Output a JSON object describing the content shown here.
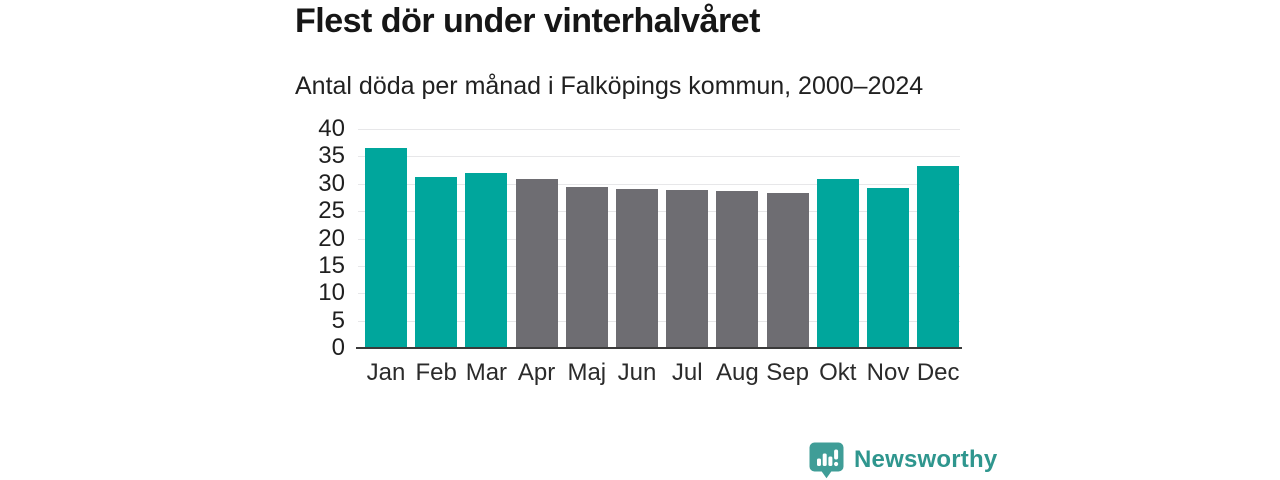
{
  "header": {
    "title": "Flest dör under vinterhalvåret",
    "subtitle": "Antal döda per månad i Falköpings kommun, 2000–2024"
  },
  "chart_data": {
    "type": "bar",
    "title": "Flest dör under vinterhalvåret",
    "subtitle": "Antal döda per månad i Falköpings kommun, 2000–2024",
    "categories": [
      "Jan",
      "Feb",
      "Mar",
      "Apr",
      "Maj",
      "Jun",
      "Jul",
      "Aug",
      "Sep",
      "Okt",
      "Nov",
      "Dec"
    ],
    "values": [
      36.6,
      31.2,
      32.0,
      30.9,
      29.4,
      29.0,
      28.9,
      28.7,
      28.3,
      30.8,
      29.3,
      33.2
    ],
    "bar_colors": [
      "teal",
      "teal",
      "teal",
      "gray",
      "gray",
      "gray",
      "gray",
      "gray",
      "gray",
      "teal",
      "teal",
      "teal"
    ],
    "colors": {
      "teal": "#00a69c",
      "gray": "#6e6d72"
    },
    "xlabel": "",
    "ylabel": "",
    "ylim": [
      0,
      40
    ],
    "ytick_step": 5,
    "grid": true,
    "legend": "none"
  },
  "footer": {
    "brand": "Newsworthy",
    "brand_color": "#2f968e",
    "icon_color": "#3f9d97",
    "logo_icon": "bar-chart-speech-bubble-icon"
  }
}
